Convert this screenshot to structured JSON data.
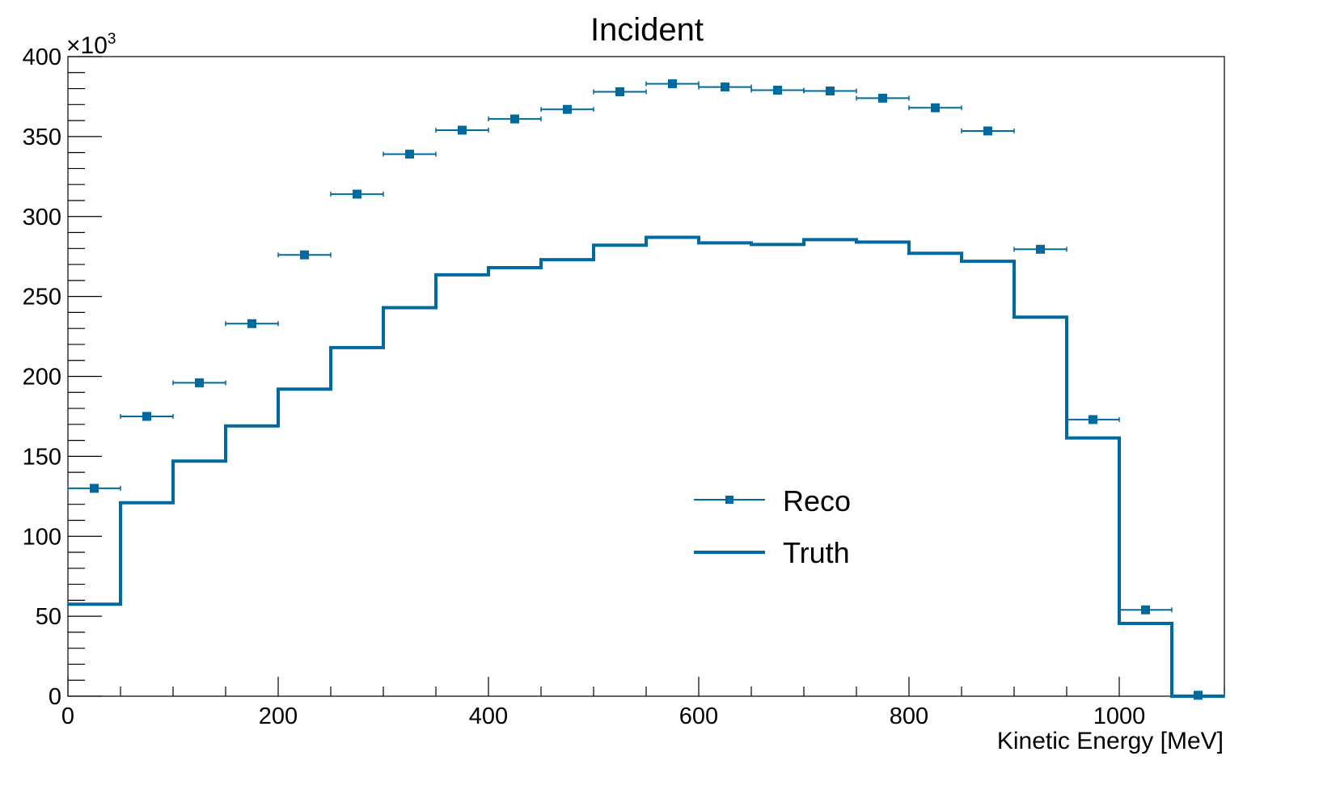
{
  "chart_data": {
    "type": "histogram",
    "title": "Incident",
    "xlabel": "Kinetic Energy [MeV]",
    "ylabel": "",
    "y_multiplier_label": "×10",
    "y_multiplier_exponent": "3",
    "xlim": [
      0,
      1100
    ],
    "ylim": [
      0,
      400000
    ],
    "x_tick_values": [
      0,
      200,
      400,
      600,
      800,
      1000
    ],
    "x_tick_labels": [
      "0",
      "200",
      "400",
      "600",
      "800",
      "1000"
    ],
    "y_tick_values": [
      0,
      50000,
      100000,
      150000,
      200000,
      250000,
      300000,
      350000,
      400000
    ],
    "y_tick_labels": [
      "0",
      "50",
      "100",
      "150",
      "200",
      "250",
      "300",
      "350",
      "400"
    ],
    "grid": false,
    "legend_position": "center",
    "bin_edges": [
      0,
      50,
      100,
      150,
      200,
      250,
      300,
      350,
      400,
      450,
      500,
      550,
      600,
      650,
      700,
      750,
      800,
      850,
      900,
      950,
      1000,
      1050,
      1100
    ],
    "series": [
      {
        "name": "Reco",
        "style": "markers-with-x-errors",
        "color": "#00699e",
        "values": [
          130000,
          175000,
          196000,
          233000,
          276000,
          314000,
          339000,
          354000,
          361000,
          367000,
          378000,
          383000,
          381000,
          379000,
          378500,
          374000,
          368000,
          353500,
          279500,
          173000,
          54000,
          600
        ]
      },
      {
        "name": "Truth",
        "style": "step",
        "color": "#00699e",
        "values": [
          57500,
          121000,
          147000,
          169000,
          192000,
          218000,
          243000,
          263500,
          268000,
          273000,
          282000,
          287000,
          283500,
          282500,
          285500,
          284000,
          277000,
          272000,
          237000,
          161500,
          45500,
          0
        ]
      }
    ]
  }
}
